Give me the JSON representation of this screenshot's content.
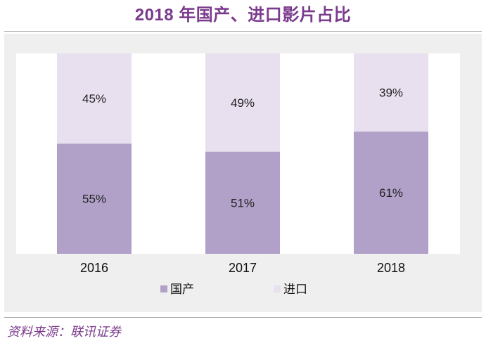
{
  "chart_data": {
    "type": "bar",
    "stacked": true,
    "normalized_percent": true,
    "title": "2018 年国产、进口影片占比",
    "categories": [
      "2016",
      "2017",
      "2018"
    ],
    "series": [
      {
        "name": "国产",
        "values": [
          55,
          51,
          61
        ],
        "labels": [
          "55%",
          "51%",
          "61%"
        ],
        "color": "#b1a1c9"
      },
      {
        "name": "进口",
        "values": [
          45,
          49,
          39
        ],
        "labels": [
          "45%",
          "49%",
          "39%"
        ],
        "color": "#e8e0ee"
      }
    ],
    "ylim": [
      0,
      100
    ],
    "xlabel": "",
    "ylabel": "",
    "grid": false,
    "legend_position": "bottom"
  },
  "source": "资料来源：联讯证券",
  "colors": {
    "title": "#7b3b8c",
    "frame": "#efefef",
    "plot": "#ffffff",
    "text": "#222222"
  }
}
